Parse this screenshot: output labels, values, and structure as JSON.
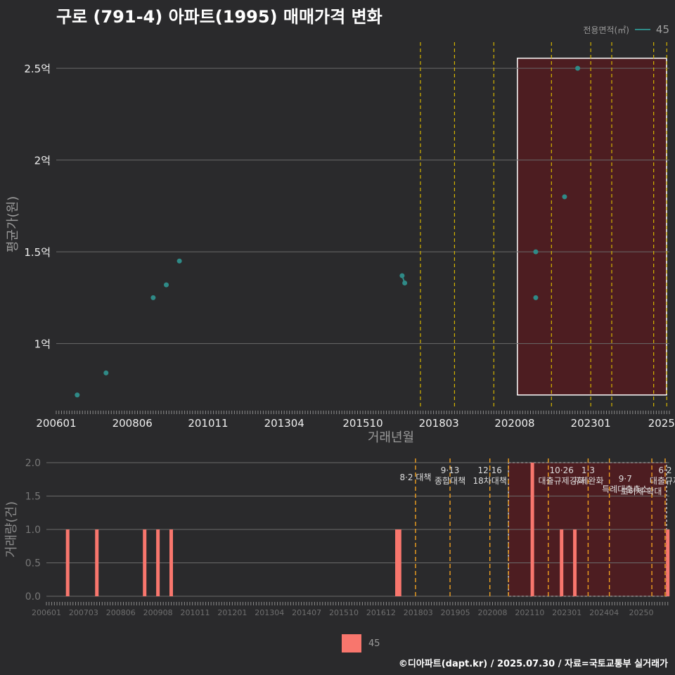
{
  "title": "구로 (791-4) 아파트(1995) 매매가격 변화",
  "footer": "©디아파트(dapt.kr) / 2025.07.30 / 자료=국토교통부 실거래가",
  "legend": {
    "title": "전용면적(㎡)",
    "value": "45"
  },
  "colors": {
    "bg": "#2a2a2c",
    "point": "#2f8a87",
    "bar": "#f8766d",
    "policy": "#d4b400",
    "policy_bottom": "#f0a020",
    "highlight": "#5a1a1e"
  },
  "chart_data": [
    {
      "type": "scatter",
      "title": "구로 (791-4) 아파트(1995) 매매가격 변화",
      "xlabel": "거래년월",
      "ylabel": "평균가(원)",
      "x_ticks": [
        "200601",
        "200806",
        "201011",
        "201304",
        "201510",
        "201803",
        "202008",
        "202301",
        "2025"
      ],
      "y_ticks": [
        {
          "value": 1.0,
          "label": "1억"
        },
        {
          "value": 1.5,
          "label": "1.5억"
        },
        {
          "value": 2.0,
          "label": "2억"
        },
        {
          "value": 2.5,
          "label": "2.5억"
        }
      ],
      "ylim": [
        0.65,
        2.65
      ],
      "xlim": [
        "2006-01",
        "2025-07"
      ],
      "series": [
        {
          "name": "45",
          "points": [
            {
              "x": "2006-09",
              "y": 0.72
            },
            {
              "x": "2007-08",
              "y": 0.84
            },
            {
              "x": "2009-02",
              "y": 1.25
            },
            {
              "x": "2009-07",
              "y": 1.32
            },
            {
              "x": "2009-12",
              "y": 1.45
            },
            {
              "x": "2017-01",
              "y": 1.37
            },
            {
              "x": "2017-02",
              "y": 1.33
            },
            {
              "x": "2021-04",
              "y": 1.25
            },
            {
              "x": "2021-04",
              "y": 1.5
            },
            {
              "x": "2022-03",
              "y": 1.8
            },
            {
              "x": "2022-08",
              "y": 2.5
            }
          ],
          "connected": [
            [
              5,
              6
            ]
          ]
        }
      ],
      "policy_lines": [
        "2017-08",
        "2018-09",
        "2019-12",
        "2021-10",
        "2023-01",
        "2023-09",
        "2025-01",
        "2025-06"
      ],
      "highlight_range": [
        "2020-09",
        "2025-07"
      ]
    },
    {
      "type": "bar",
      "xlabel": "",
      "ylabel": "거래량(건)",
      "x_ticks": [
        "200601",
        "200703",
        "200806",
        "200908",
        "201011",
        "201201",
        "201304",
        "201407",
        "201510",
        "201612",
        "201803",
        "201905",
        "202008",
        "202110",
        "202301",
        "202404",
        "20250"
      ],
      "y_ticks": [
        "0.0",
        "0.5",
        "1.0",
        "1.5",
        "2.0"
      ],
      "ylim": [
        0,
        2
      ],
      "series": [
        {
          "name": "45",
          "bars": [
            {
              "x": "2006-09",
              "y": 1
            },
            {
              "x": "2007-08",
              "y": 1
            },
            {
              "x": "2009-02",
              "y": 1
            },
            {
              "x": "2009-07",
              "y": 1
            },
            {
              "x": "2009-12",
              "y": 1
            },
            {
              "x": "2017-01",
              "y": 1
            },
            {
              "x": "2017-02",
              "y": 1
            },
            {
              "x": "2021-04",
              "y": 2
            },
            {
              "x": "2022-03",
              "y": 1
            },
            {
              "x": "2022-08",
              "y": 1
            },
            {
              "x": "2025-07",
              "y": 1
            }
          ]
        }
      ],
      "policy_lines": [
        "2017-08",
        "2018-09",
        "2019-12",
        "2020-07",
        "2021-10",
        "2023-01",
        "2023-09",
        "2025-01",
        "2025-06"
      ],
      "annotations": [
        {
          "x": "2017-08",
          "lines": [
            "8·2 대책"
          ]
        },
        {
          "x": "2018-09",
          "lines": [
            "9·13",
            "종합대책"
          ]
        },
        {
          "x": "2019-12",
          "lines": [
            "12·16",
            "18차대책"
          ]
        },
        {
          "x": "2022-03",
          "lines": [
            "10·26",
            "대출규제강화"
          ]
        },
        {
          "x": "2023-01",
          "lines": [
            "1·3",
            "규제완화"
          ]
        },
        {
          "x": "2024-03",
          "lines": [
            "9·7",
            "특례대출축소"
          ]
        },
        {
          "x": "2024-09",
          "lines": [
            "토허제 확대"
          ]
        },
        {
          "x": "2025-06",
          "lines": [
            "6·2",
            "대출규제"
          ]
        }
      ],
      "highlight_range": [
        "2020-07",
        "2025-07"
      ]
    }
  ]
}
